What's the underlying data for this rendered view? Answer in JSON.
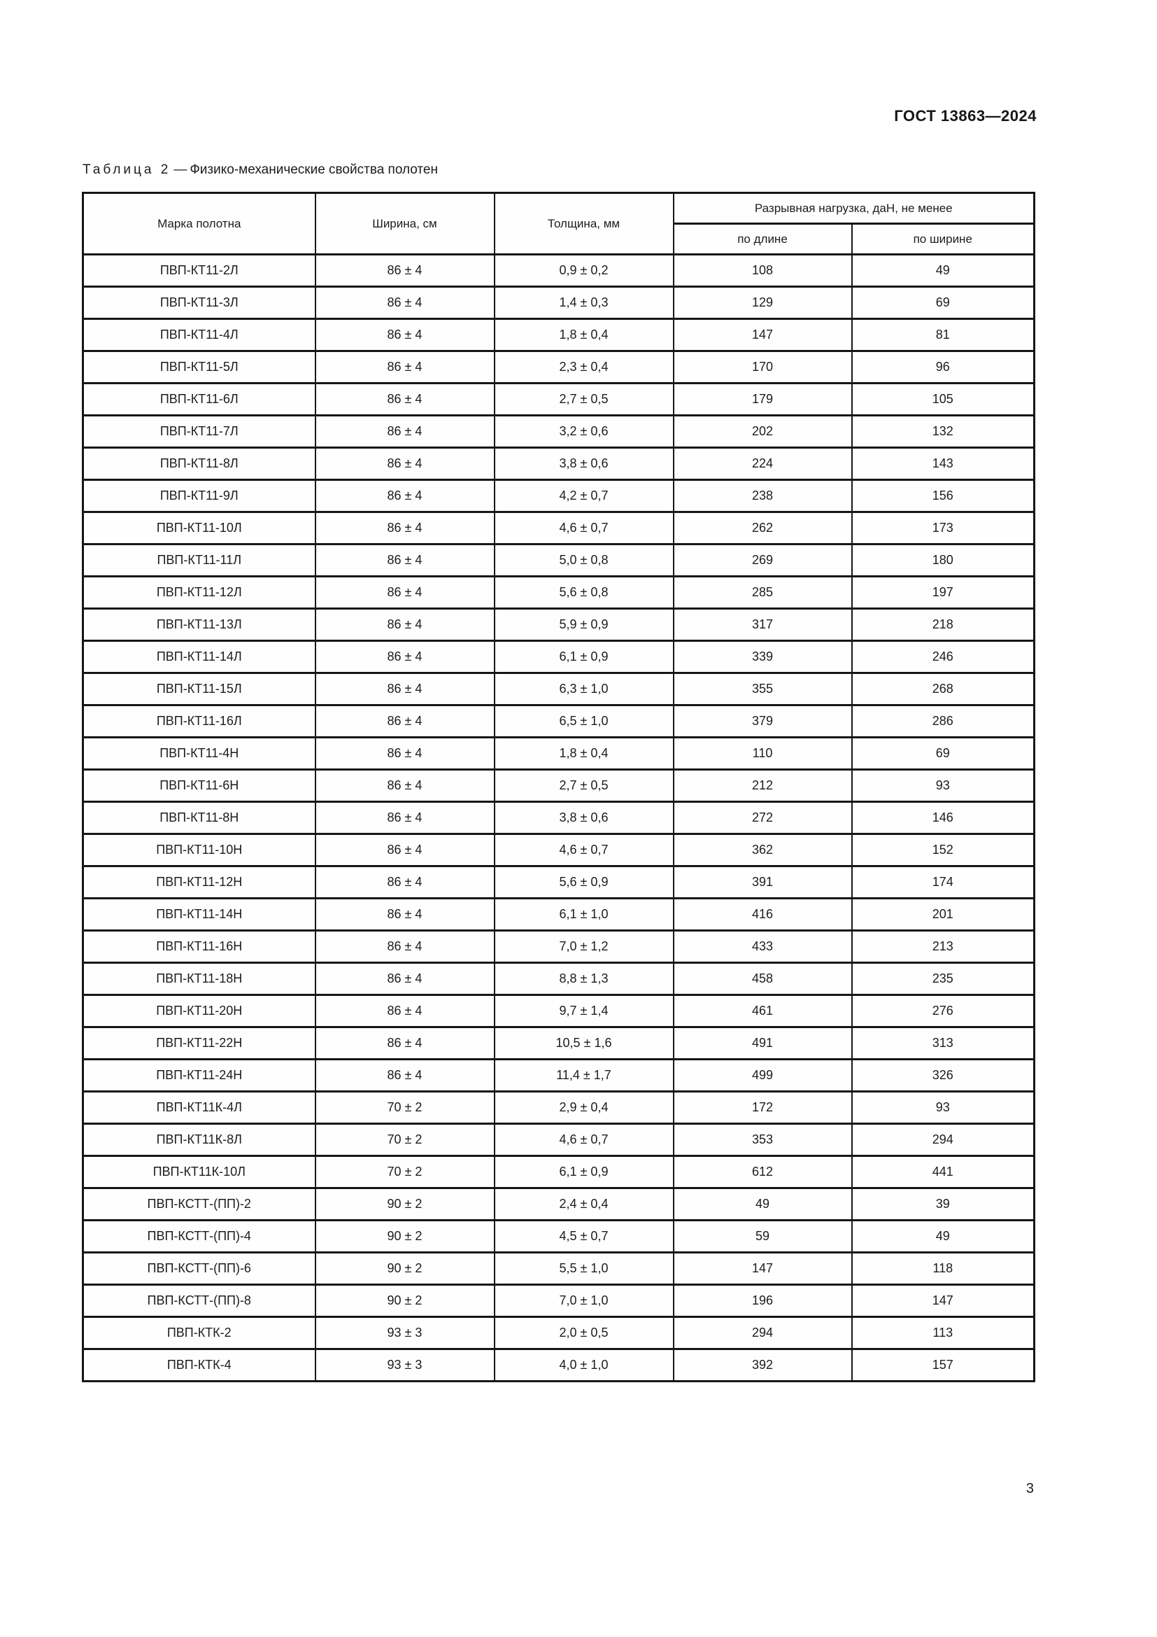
{
  "header": {
    "doc_ref": "ГОСТ 13863—2024"
  },
  "caption": {
    "label": "Таблица 2",
    "dash": "—",
    "title": "Физико-механические свойства полотен"
  },
  "table": {
    "columns": {
      "mark": "Марка полотна",
      "width": "Ширина, см",
      "thickness": "Толщина, мм",
      "breaking_load_group": "Разрывная нагрузка, даН, не менее",
      "by_length": "по длине",
      "by_width": "по ширине"
    },
    "column_keys": [
      "mark",
      "width",
      "thickness",
      "load-by-length",
      "load-by-width"
    ],
    "rows": [
      [
        "ПВП-КТ11-2Л",
        "86 ± 4",
        "0,9 ± 0,2",
        "108",
        "49"
      ],
      [
        "ПВП-КТ11-3Л",
        "86 ± 4",
        "1,4 ± 0,3",
        "129",
        "69"
      ],
      [
        "ПВП-КТ11-4Л",
        "86 ± 4",
        "1,8 ± 0,4",
        "147",
        "81"
      ],
      [
        "ПВП-КТ11-5Л",
        "86 ± 4",
        "2,3 ± 0,4",
        "170",
        "96"
      ],
      [
        "ПВП-КТ11-6Л",
        "86 ± 4",
        "2,7 ± 0,5",
        "179",
        "105"
      ],
      [
        "ПВП-КТ11-7Л",
        "86 ± 4",
        "3,2 ± 0,6",
        "202",
        "132"
      ],
      [
        "ПВП-КТ11-8Л",
        "86 ± 4",
        "3,8 ± 0,6",
        "224",
        "143"
      ],
      [
        "ПВП-КТ11-9Л",
        "86 ± 4",
        "4,2 ± 0,7",
        "238",
        "156"
      ],
      [
        "ПВП-КТ11-10Л",
        "86 ± 4",
        "4,6 ± 0,7",
        "262",
        "173"
      ],
      [
        "ПВП-КТ11-11Л",
        "86 ± 4",
        "5,0 ± 0,8",
        "269",
        "180"
      ],
      [
        "ПВП-КТ11-12Л",
        "86 ± 4",
        "5,6 ± 0,8",
        "285",
        "197"
      ],
      [
        "ПВП-КТ11-13Л",
        "86 ± 4",
        "5,9 ± 0,9",
        "317",
        "218"
      ],
      [
        "ПВП-КТ11-14Л",
        "86 ± 4",
        "6,1 ± 0,9",
        "339",
        "246"
      ],
      [
        "ПВП-КТ11-15Л",
        "86 ± 4",
        "6,3 ± 1,0",
        "355",
        "268"
      ],
      [
        "ПВП-КТ11-16Л",
        "86 ± 4",
        "6,5 ± 1,0",
        "379",
        "286"
      ],
      [
        "ПВП-КТ11-4Н",
        "86 ± 4",
        "1,8 ± 0,4",
        "110",
        "69"
      ],
      [
        "ПВП-КТ11-6Н",
        "86 ± 4",
        "2,7 ± 0,5",
        "212",
        "93"
      ],
      [
        "ПВП-КТ11-8Н",
        "86 ± 4",
        "3,8 ± 0,6",
        "272",
        "146"
      ],
      [
        "ПВП-КТ11-10Н",
        "86 ± 4",
        "4,6 ± 0,7",
        "362",
        "152"
      ],
      [
        "ПВП-КТ11-12Н",
        "86 ± 4",
        "5,6 ± 0,9",
        "391",
        "174"
      ],
      [
        "ПВП-КТ11-14Н",
        "86 ± 4",
        "6,1 ± 1,0",
        "416",
        "201"
      ],
      [
        "ПВП-КТ11-16Н",
        "86 ± 4",
        "7,0 ± 1,2",
        "433",
        "213"
      ],
      [
        "ПВП-КТ11-18Н",
        "86 ± 4",
        "8,8 ± 1,3",
        "458",
        "235"
      ],
      [
        "ПВП-КТ11-20Н",
        "86 ± 4",
        "9,7 ± 1,4",
        "461",
        "276"
      ],
      [
        "ПВП-КТ11-22Н",
        "86 ± 4",
        "10,5 ± 1,6",
        "491",
        "313"
      ],
      [
        "ПВП-КТ11-24Н",
        "86 ± 4",
        "11,4 ± 1,7",
        "499",
        "326"
      ],
      [
        "ПВП-КТ11К-4Л",
        "70 ± 2",
        "2,9 ± 0,4",
        "172",
        "93"
      ],
      [
        "ПВП-КТ11К-8Л",
        "70 ± 2",
        "4,6 ± 0,7",
        "353",
        "294"
      ],
      [
        "ПВП-КТ11К-10Л",
        "70 ± 2",
        "6,1 ± 0,9",
        "612",
        "441"
      ],
      [
        "ПВП-КСТТ-(ПП)-2",
        "90 ± 2",
        "2,4 ± 0,4",
        "49",
        "39"
      ],
      [
        "ПВП-КСТТ-(ПП)-4",
        "90 ± 2",
        "4,5 ± 0,7",
        "59",
        "49"
      ],
      [
        "ПВП-КСТТ-(ПП)-6",
        "90 ± 2",
        "5,5 ± 1,0",
        "147",
        "118"
      ],
      [
        "ПВП-КСТТ-(ПП)-8",
        "90 ± 2",
        "7,0 ± 1,0",
        "196",
        "147"
      ],
      [
        "ПВП-КТК-2",
        "93 ± 3",
        "2,0 ± 0,5",
        "294",
        "113"
      ],
      [
        "ПВП-КТК-4",
        "93 ± 3",
        "4,0 ± 1,0",
        "392",
        "157"
      ]
    ]
  },
  "footer": {
    "page_number": "3"
  }
}
